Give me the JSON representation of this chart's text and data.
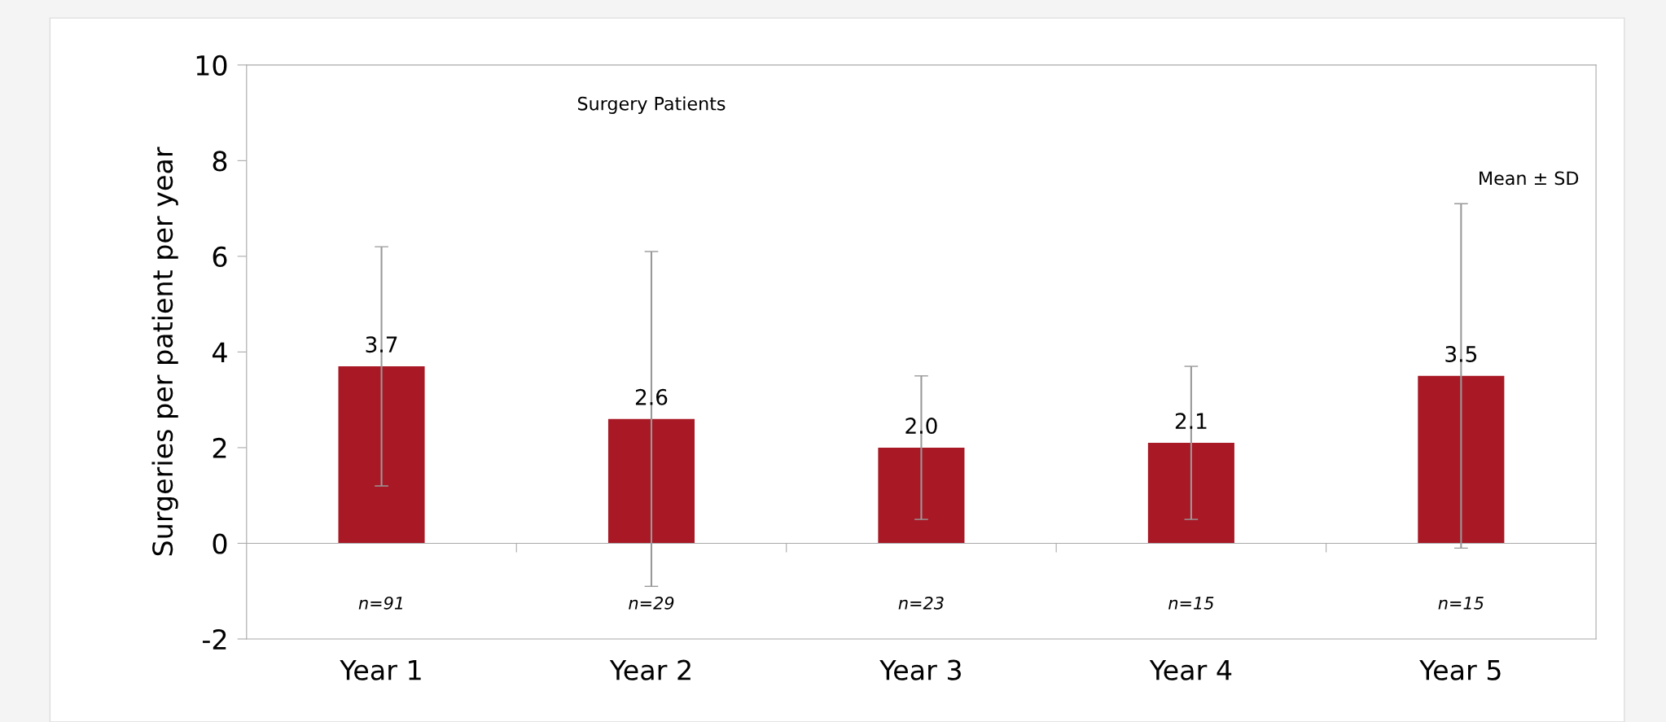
{
  "chart_data": {
    "type": "bar",
    "title": "Surgery Patients",
    "ylabel": "Surgeries per patient per year",
    "categories": [
      "Year 1",
      "Year 2",
      "Year 3",
      "Year 4",
      "Year 5"
    ],
    "values": [
      3.7,
      2.6,
      2.0,
      2.1,
      3.5
    ],
    "color": "#a81825",
    "value_labels": [
      "3.7",
      "2.6",
      "2.0",
      "2.1",
      "3.5"
    ],
    "errors": [
      2.5,
      3.5,
      1.5,
      1.6,
      3.6
    ],
    "ylim": [
      -2,
      10
    ],
    "yticks": [
      -2,
      0,
      2,
      4,
      6,
      8,
      10
    ],
    "annotations": [
      "Mean ± SD",
      "n=91",
      "n=29",
      "n=23",
      "n=15",
      "n=15"
    ]
  }
}
